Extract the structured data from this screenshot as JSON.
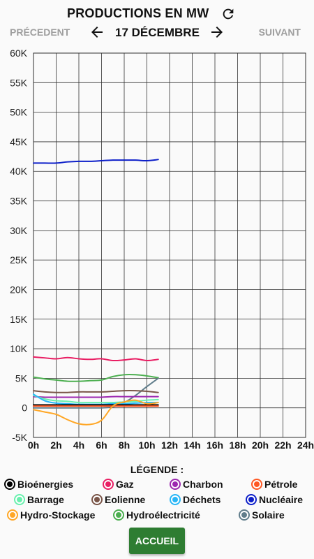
{
  "header": {
    "title": "PRODUCTIONS EN MW",
    "refresh_icon": "refresh-icon"
  },
  "nav": {
    "prev_label": "PRÉCEDENT",
    "next_label": "SUIVANT",
    "date": "17 DÉCEMBRE",
    "left_icon": "arrow-left-icon",
    "right_icon": "arrow-right-icon"
  },
  "legend": {
    "title": "LÉGENDE :",
    "items": [
      {
        "label": "Bioénergies",
        "color": "#000000"
      },
      {
        "label": "Gaz",
        "color": "#e91e63"
      },
      {
        "label": "Charbon",
        "color": "#9c27b0"
      },
      {
        "label": "Pétrole",
        "color": "#ff5722"
      },
      {
        "label": "Barrage",
        "color": "#69f0ae"
      },
      {
        "label": "Eolienne",
        "color": "#795548"
      },
      {
        "label": "Déchets",
        "color": "#29b6f6"
      },
      {
        "label": "Nucléaire",
        "color": "#0d1fc9"
      },
      {
        "label": "Hydro-Stockage",
        "color": "#ffa726"
      },
      {
        "label": "Hydroélectricité",
        "color": "#4caf50"
      },
      {
        "label": "Solaire",
        "color": "#607d8b"
      }
    ]
  },
  "footer": {
    "home_label": "ACCUEIL"
  },
  "chart_data": {
    "type": "line",
    "title": "",
    "xlabel": "",
    "ylabel": "",
    "xlim": [
      0,
      24
    ],
    "ylim": [
      -5000,
      60000
    ],
    "grid": true,
    "x_ticks": [
      "0h",
      "2h",
      "4h",
      "6h",
      "8h",
      "10h",
      "12h",
      "14h",
      "16h",
      "18h",
      "20h",
      "22h",
      "24h"
    ],
    "y_ticks": [
      "-5K",
      "0",
      "5K",
      "10K",
      "15K",
      "20K",
      "25K",
      "30K",
      "35K",
      "40K",
      "45K",
      "50K",
      "55K",
      "60K"
    ],
    "x": [
      0,
      1,
      2,
      3,
      4,
      5,
      6,
      7,
      8,
      9,
      10,
      11
    ],
    "series": [
      {
        "name": "Nucléaire",
        "color": "#0d1fc9",
        "values": [
          41400,
          41400,
          41400,
          41600,
          41700,
          41700,
          41800,
          41900,
          41900,
          41900,
          41800,
          42000
        ]
      },
      {
        "name": "Gaz",
        "color": "#e91e63",
        "values": [
          8600,
          8450,
          8300,
          8500,
          8300,
          8200,
          8300,
          8000,
          8100,
          8300,
          8000,
          8200
        ]
      },
      {
        "name": "Hydroélectricité",
        "color": "#4caf50",
        "values": [
          5200,
          4900,
          4700,
          4500,
          4500,
          4600,
          4700,
          5300,
          5600,
          5600,
          5400,
          5100
        ]
      },
      {
        "name": "Solaire",
        "color": "#607d8b",
        "values": [
          0,
          0,
          0,
          0,
          0,
          0,
          0,
          200,
          900,
          2100,
          3600,
          5000
        ]
      },
      {
        "name": "Eolienne",
        "color": "#795548",
        "values": [
          2900,
          2700,
          2600,
          2600,
          2700,
          2700,
          2700,
          2800,
          2900,
          2900,
          2800,
          2600
        ]
      },
      {
        "name": "Charbon",
        "color": "#9c27b0",
        "values": [
          1900,
          1800,
          1800,
          1800,
          1800,
          1800,
          1800,
          1900,
          1900,
          1900,
          1900,
          1900
        ]
      },
      {
        "name": "Barrage",
        "color": "#69f0ae",
        "values": [
          2100,
          1500,
          1200,
          1100,
          900,
          900,
          900,
          900,
          1000,
          1100,
          1300,
          1400
        ]
      },
      {
        "name": "Déchets",
        "color": "#29b6f6",
        "values": [
          2300,
          1200,
          800,
          700,
          600,
          600,
          600,
          700,
          700,
          800,
          900,
          900
        ]
      },
      {
        "name": "Bioénergies",
        "color": "#000000",
        "values": [
          500,
          500,
          500,
          500,
          500,
          500,
          500,
          500,
          500,
          500,
          500,
          500
        ]
      },
      {
        "name": "Pétrole",
        "color": "#ff5722",
        "values": [
          300,
          300,
          300,
          300,
          300,
          300,
          300,
          300,
          300,
          300,
          300,
          300
        ]
      },
      {
        "name": "Hydro-Stockage",
        "color": "#ffa726",
        "values": [
          -300,
          -700,
          -1100,
          -2000,
          -2700,
          -2800,
          -2100,
          300,
          1000,
          1300,
          700,
          900
        ]
      }
    ]
  }
}
